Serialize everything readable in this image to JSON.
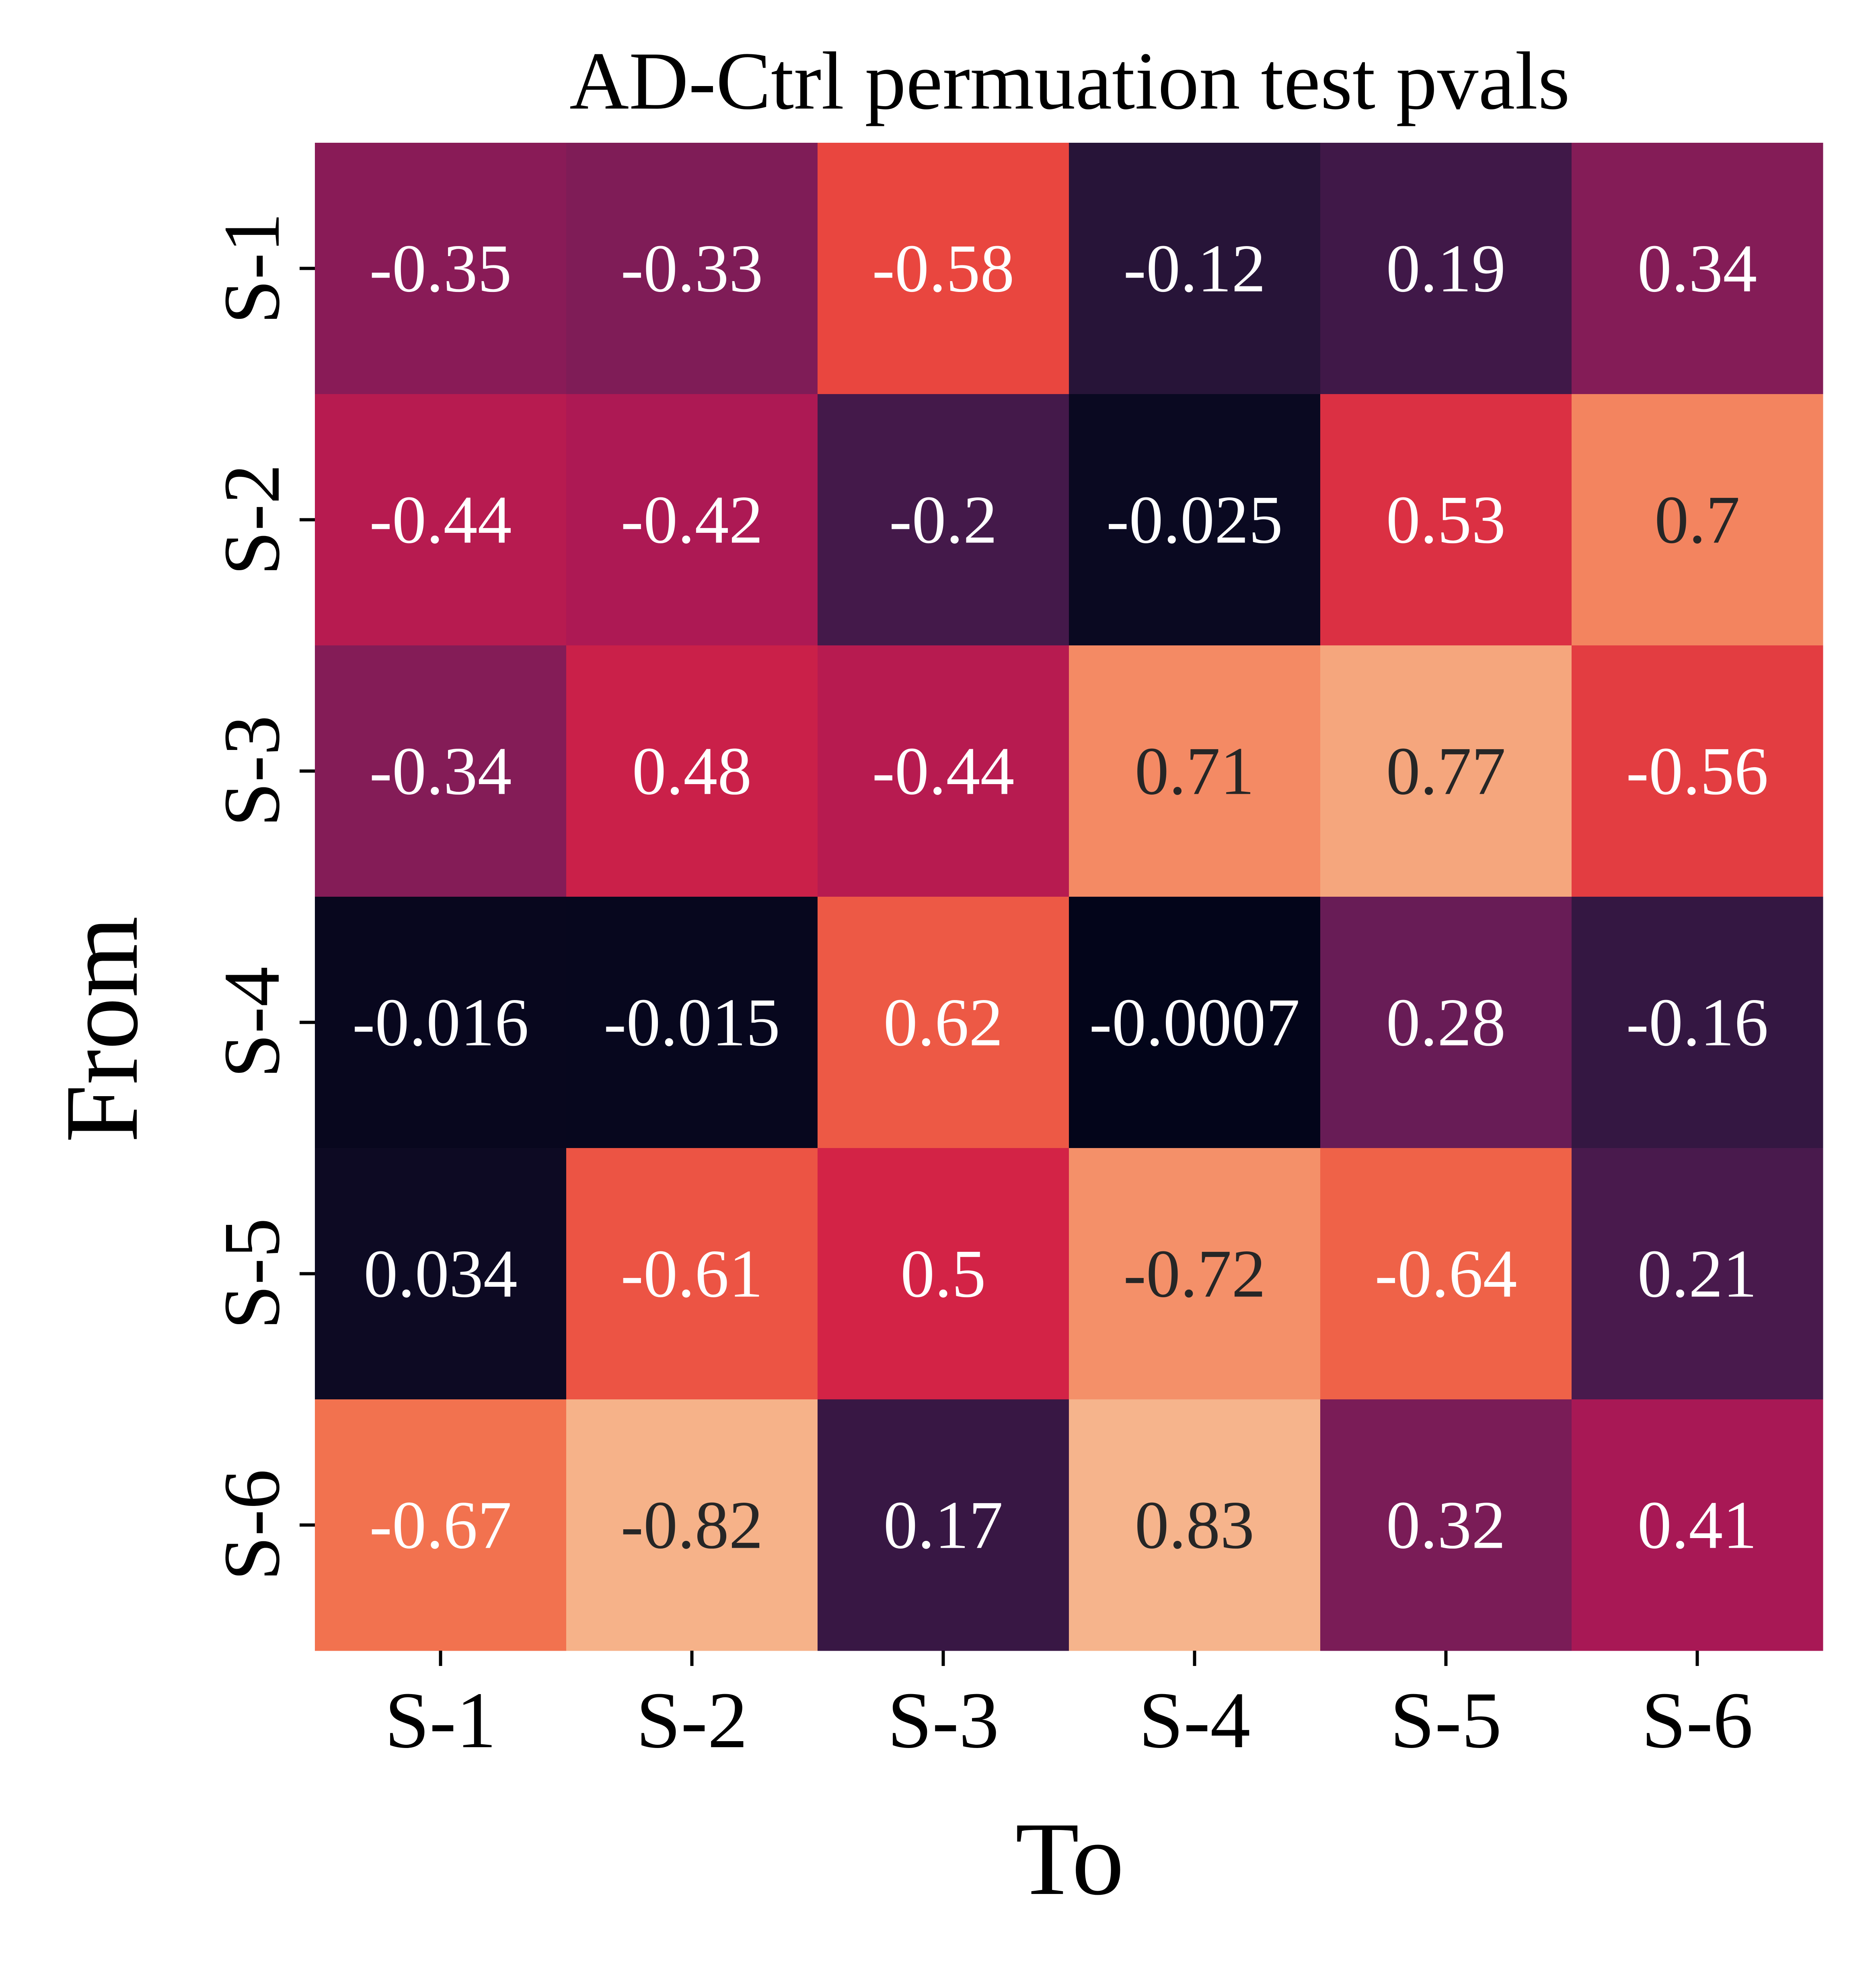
{
  "chart_data": {
    "type": "heatmap",
    "title": "AD-Ctrl permuation test pvals",
    "xlabel": "To",
    "ylabel": "From",
    "x_categories": [
      "S-1",
      "S-2",
      "S-3",
      "S-4",
      "S-5",
      "S-6"
    ],
    "y_categories": [
      "S-1",
      "S-2",
      "S-3",
      "S-4",
      "S-5",
      "S-6"
    ],
    "values": [
      [
        -0.35,
        -0.33,
        -0.58,
        -0.12,
        0.19,
        0.34
      ],
      [
        -0.44,
        -0.42,
        -0.2,
        -0.025,
        0.53,
        0.7
      ],
      [
        -0.34,
        0.48,
        -0.44,
        0.71,
        0.77,
        -0.56
      ],
      [
        -0.016,
        -0.015,
        0.62,
        -0.0007,
        0.28,
        -0.16
      ],
      [
        0.034,
        -0.61,
        0.5,
        -0.72,
        -0.64,
        0.21
      ],
      [
        -0.67,
        -0.82,
        0.17,
        0.83,
        0.32,
        0.41
      ]
    ],
    "cell_labels": [
      [
        "-0.35",
        "-0.33",
        "-0.58",
        "-0.12",
        "0.19",
        "0.34"
      ],
      [
        "-0.44",
        "-0.42",
        "-0.2",
        "-0.025",
        "0.53",
        "0.7"
      ],
      [
        "-0.34",
        "0.48",
        "-0.44",
        "0.71",
        "0.77",
        "-0.56"
      ],
      [
        "-0.016",
        "-0.015",
        "0.62",
        "-0.0007",
        "0.28",
        "-0.16"
      ],
      [
        "0.034",
        "-0.61",
        "0.5",
        "-0.72",
        "-0.64",
        "0.21"
      ],
      [
        "-0.67",
        "-0.82",
        "0.17",
        "0.83",
        "0.32",
        "0.41"
      ]
    ],
    "color_scale": {
      "name": "rocket",
      "mapped_on": "absolute value",
      "range": [
        0,
        0.83
      ]
    },
    "colorbar": false,
    "grid": false
  }
}
